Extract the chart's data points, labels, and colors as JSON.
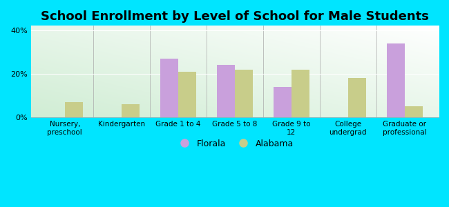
{
  "title": "School Enrollment by Level of School for Male Students",
  "categories": [
    "Nursery,\npreschool",
    "Kindergarten",
    "Grade 1 to 4",
    "Grade 5 to 8",
    "Grade 9 to\n12",
    "College\nundergrad",
    "Graduate or\nprofessional"
  ],
  "florala": [
    0,
    0,
    27,
    24,
    14,
    0,
    34
  ],
  "alabama": [
    7,
    6,
    21,
    22,
    22,
    18,
    5
  ],
  "florala_color": "#c9a0dc",
  "alabama_color": "#c8cd8a",
  "bg_color": "#00e5ff",
  "ylim": [
    0,
    42
  ],
  "yticks": [
    0,
    20,
    40
  ],
  "ytick_labels": [
    "0%",
    "20%",
    "40%"
  ],
  "title_fontsize": 13,
  "legend_labels": [
    "Florala",
    "Alabama"
  ],
  "bar_width": 0.32
}
